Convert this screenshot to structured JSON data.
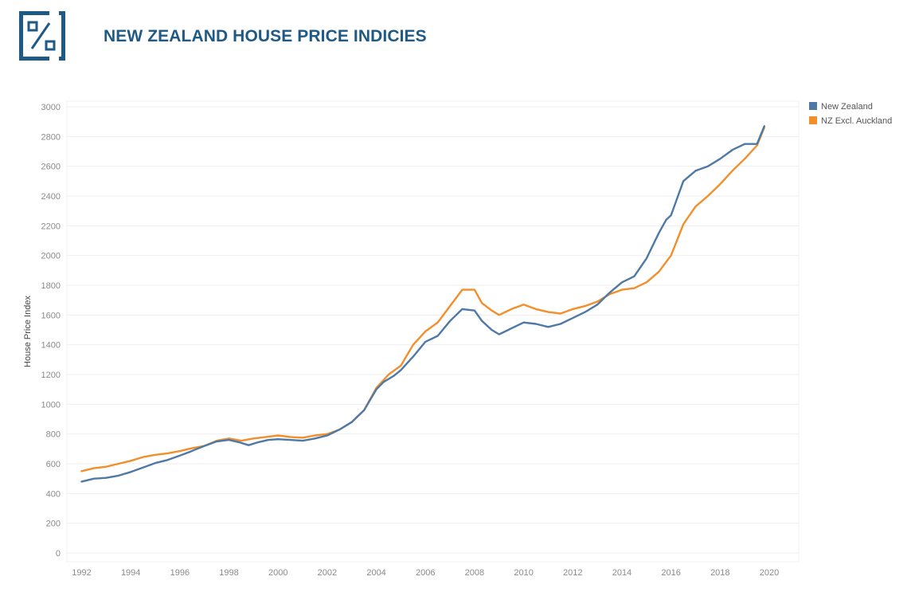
{
  "header": {
    "title": "NEW ZEALAND HOUSE PRICE INDICIES"
  },
  "colors": {
    "brand": "#1f5a86",
    "new_zealand": "#4e79a7",
    "nz_excl_auckland": "#f28e2b",
    "grid": "#eeeeee"
  },
  "chart_data": {
    "type": "line",
    "title": "",
    "xlabel": "",
    "ylabel": "House Price Index",
    "xlim": [
      1991.4,
      2021.2
    ],
    "ylim": [
      0,
      3000
    ],
    "x_ticks": [
      1992,
      1994,
      1996,
      1998,
      2000,
      2002,
      2004,
      2006,
      2008,
      2010,
      2012,
      2014,
      2016,
      2018,
      2020
    ],
    "y_ticks": [
      0,
      200,
      400,
      600,
      800,
      1000,
      1200,
      1400,
      1600,
      1800,
      2000,
      2200,
      2400,
      2600,
      2800,
      3000
    ],
    "grid": true,
    "legend": "right",
    "series": [
      {
        "name": "New Zealand",
        "color": "#4e79a7",
        "points": [
          [
            1992.0,
            480
          ],
          [
            1992.5,
            500
          ],
          [
            1993.0,
            505
          ],
          [
            1993.5,
            520
          ],
          [
            1994.0,
            545
          ],
          [
            1994.5,
            575
          ],
          [
            1995.0,
            605
          ],
          [
            1995.5,
            625
          ],
          [
            1996.0,
            655
          ],
          [
            1996.4,
            680
          ],
          [
            1996.7,
            700
          ],
          [
            1997.0,
            720
          ],
          [
            1997.5,
            750
          ],
          [
            1998.0,
            760
          ],
          [
            1998.4,
            745
          ],
          [
            1998.8,
            725
          ],
          [
            1999.2,
            745
          ],
          [
            1999.6,
            760
          ],
          [
            2000.0,
            765
          ],
          [
            2000.5,
            760
          ],
          [
            2001.0,
            755
          ],
          [
            2001.5,
            770
          ],
          [
            2002.0,
            790
          ],
          [
            2002.5,
            830
          ],
          [
            2003.0,
            880
          ],
          [
            2003.5,
            960
          ],
          [
            2004.0,
            1100
          ],
          [
            2004.3,
            1150
          ],
          [
            2004.7,
            1190
          ],
          [
            2005.0,
            1230
          ],
          [
            2005.5,
            1320
          ],
          [
            2006.0,
            1420
          ],
          [
            2006.5,
            1460
          ],
          [
            2007.0,
            1560
          ],
          [
            2007.5,
            1640
          ],
          [
            2008.0,
            1630
          ],
          [
            2008.3,
            1560
          ],
          [
            2008.7,
            1500
          ],
          [
            2009.0,
            1470
          ],
          [
            2009.5,
            1510
          ],
          [
            2010.0,
            1550
          ],
          [
            2010.5,
            1540
          ],
          [
            2011.0,
            1520
          ],
          [
            2011.5,
            1540
          ],
          [
            2012.0,
            1580
          ],
          [
            2012.5,
            1620
          ],
          [
            2013.0,
            1670
          ],
          [
            2013.5,
            1750
          ],
          [
            2014.0,
            1820
          ],
          [
            2014.5,
            1860
          ],
          [
            2015.0,
            1980
          ],
          [
            2015.5,
            2150
          ],
          [
            2015.8,
            2240
          ],
          [
            2016.0,
            2270
          ],
          [
            2016.5,
            2500
          ],
          [
            2017.0,
            2570
          ],
          [
            2017.5,
            2600
          ],
          [
            2018.0,
            2650
          ],
          [
            2018.5,
            2710
          ],
          [
            2019.0,
            2750
          ],
          [
            2019.5,
            2750
          ],
          [
            2019.8,
            2870
          ]
        ]
      },
      {
        "name": "NZ Excl. Auckland",
        "color": "#f28e2b",
        "points": [
          [
            1992.0,
            550
          ],
          [
            1992.5,
            570
          ],
          [
            1993.0,
            580
          ],
          [
            1993.5,
            600
          ],
          [
            1994.0,
            620
          ],
          [
            1994.5,
            645
          ],
          [
            1995.0,
            660
          ],
          [
            1995.5,
            670
          ],
          [
            1996.0,
            685
          ],
          [
            1996.5,
            705
          ],
          [
            1997.0,
            720
          ],
          [
            1997.5,
            755
          ],
          [
            1998.0,
            770
          ],
          [
            1998.5,
            755
          ],
          [
            1999.0,
            770
          ],
          [
            1999.5,
            780
          ],
          [
            2000.0,
            790
          ],
          [
            2000.5,
            780
          ],
          [
            2001.0,
            775
          ],
          [
            2001.5,
            790
          ],
          [
            2002.0,
            800
          ],
          [
            2002.5,
            830
          ],
          [
            2003.0,
            880
          ],
          [
            2003.5,
            960
          ],
          [
            2004.0,
            1110
          ],
          [
            2004.5,
            1200
          ],
          [
            2005.0,
            1260
          ],
          [
            2005.5,
            1400
          ],
          [
            2006.0,
            1490
          ],
          [
            2006.5,
            1550
          ],
          [
            2007.0,
            1660
          ],
          [
            2007.5,
            1770
          ],
          [
            2008.0,
            1770
          ],
          [
            2008.3,
            1680
          ],
          [
            2008.7,
            1630
          ],
          [
            2009.0,
            1600
          ],
          [
            2009.5,
            1640
          ],
          [
            2010.0,
            1670
          ],
          [
            2010.5,
            1640
          ],
          [
            2011.0,
            1620
          ],
          [
            2011.5,
            1610
          ],
          [
            2012.0,
            1640
          ],
          [
            2012.5,
            1660
          ],
          [
            2013.0,
            1690
          ],
          [
            2013.5,
            1740
          ],
          [
            2014.0,
            1770
          ],
          [
            2014.5,
            1780
          ],
          [
            2015.0,
            1820
          ],
          [
            2015.5,
            1890
          ],
          [
            2016.0,
            2000
          ],
          [
            2016.5,
            2210
          ],
          [
            2017.0,
            2330
          ],
          [
            2017.5,
            2400
          ],
          [
            2018.0,
            2480
          ],
          [
            2018.5,
            2570
          ],
          [
            2019.0,
            2650
          ],
          [
            2019.5,
            2740
          ],
          [
            2019.8,
            2860
          ]
        ]
      }
    ]
  }
}
